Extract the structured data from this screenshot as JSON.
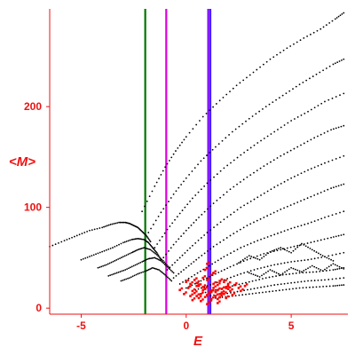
{
  "chart_data": {
    "type": "scatter",
    "xlabel": "E",
    "ylabel": "<M>",
    "xlim": [
      -6.5,
      7.7
    ],
    "ylim": [
      -6,
      297
    ],
    "x_ticks": [
      -5,
      0,
      5
    ],
    "y_ticks": [
      0,
      100,
      200
    ],
    "grid": false,
    "colors": {
      "axis": "#ee1111",
      "band_points": "#000000",
      "cluster_points": "#ff0000",
      "line_green": "#007700",
      "line_magenta": "#dd00dd",
      "line_purple": "#7a00ff",
      "line_blue": "#4a1fff"
    },
    "vertical_lines": [
      {
        "x": -1.95,
        "color": "#007700"
      },
      {
        "x": -0.95,
        "color": "#dd00dd"
      },
      {
        "x": 1.05,
        "color": "#7a00ff"
      },
      {
        "x": 1.15,
        "color": "#4a1fff"
      }
    ],
    "bands": [
      {
        "x": [
          -6.5,
          -5.8,
          -5.2,
          -4.6,
          -4.0,
          -3.6,
          -3.2,
          -2.9,
          -2.7,
          -2.5,
          -2.3,
          -2.1,
          -1.9,
          -1.7
        ],
        "y": [
          61,
          67,
          72,
          77,
          80,
          83,
          85,
          85,
          84,
          82,
          80,
          76,
          72,
          66
        ]
      },
      {
        "x": [
          -5.0,
          -4.5,
          -4.0,
          -3.5,
          -3.0,
          -2.6,
          -2.3,
          -2.0,
          -1.8,
          -1.6,
          -1.4,
          -1.2
        ],
        "y": [
          48,
          52,
          56,
          60,
          65,
          68,
          69,
          68,
          65,
          60,
          55,
          48
        ]
      },
      {
        "x": [
          -4.2,
          -3.8,
          -3.4,
          -3.0,
          -2.6,
          -2.3,
          -2.0,
          -1.7,
          -1.4,
          -1.1,
          -0.8
        ],
        "y": [
          40,
          43,
          47,
          51,
          55,
          58,
          60,
          58,
          53,
          47,
          40
        ]
      },
      {
        "x": [
          -3.7,
          -3.3,
          -2.9,
          -2.5,
          -2.1,
          -1.8,
          -1.5,
          -1.2,
          -0.9,
          -0.6
        ],
        "y": [
          32,
          35,
          38,
          42,
          46,
          49,
          50,
          47,
          41,
          35
        ]
      },
      {
        "x": [
          -3.1,
          -2.7,
          -2.3,
          -1.9,
          -1.6,
          -1.3,
          -1.0,
          -0.7
        ],
        "y": [
          27,
          30,
          34,
          37,
          40,
          38,
          33,
          27
        ]
      },
      {
        "x": [
          -2.1,
          -1.5,
          -1.0,
          -0.5,
          0.0,
          0.8,
          1.6,
          2.4,
          3.2,
          4.0,
          4.8,
          5.6,
          6.4,
          7.1,
          7.5
        ],
        "y": [
          96,
          121,
          140,
          156,
          170,
          190,
          206,
          221,
          234,
          247,
          258,
          268,
          277,
          287,
          293
        ]
      },
      {
        "x": [
          -1.8,
          -1.2,
          -0.6,
          0.0,
          0.7,
          1.4,
          2.2,
          3.0,
          3.8,
          4.6,
          5.4,
          6.2,
          7.0,
          7.5
        ],
        "y": [
          75,
          95,
          113,
          129,
          146,
          160,
          175,
          188,
          200,
          211,
          222,
          232,
          242,
          247
        ]
      },
      {
        "x": [
          -1.5,
          -0.9,
          -0.3,
          0.3,
          1.0,
          1.8,
          2.6,
          3.4,
          4.2,
          5.0,
          5.8,
          6.6,
          7.5
        ],
        "y": [
          60,
          78,
          94,
          109,
          124,
          139,
          152,
          164,
          175,
          186,
          195,
          205,
          213
        ]
      },
      {
        "x": [
          -1.2,
          -0.6,
          0.0,
          0.6,
          1.3,
          2.1,
          2.9,
          3.7,
          4.5,
          5.3,
          6.1,
          6.9,
          7.5
        ],
        "y": [
          47,
          63,
          77,
          90,
          104,
          118,
          130,
          141,
          151,
          160,
          169,
          177,
          181
        ]
      },
      {
        "x": [
          -0.9,
          -0.3,
          0.3,
          1.0,
          1.8,
          2.6,
          3.4,
          4.2,
          5.0,
          5.8,
          6.6,
          7.5
        ],
        "y": [
          38,
          50,
          62,
          75,
          88,
          100,
          110,
          120,
          129,
          137,
          144,
          151
        ]
      },
      {
        "x": [
          -0.6,
          0.0,
          0.6,
          1.3,
          2.1,
          2.9,
          3.7,
          4.5,
          5.3,
          6.1,
          6.9,
          7.5
        ],
        "y": [
          30,
          40,
          50,
          61,
          72,
          82,
          90,
          98,
          105,
          112,
          119,
          123
        ]
      },
      {
        "x": [
          -0.3,
          0.4,
          1.1,
          1.8,
          2.6,
          3.4,
          4.2,
          5.0,
          5.8,
          6.6,
          7.5
        ],
        "y": [
          24,
          33,
          42,
          51,
          60,
          67,
          73,
          79,
          84,
          90,
          96
        ]
      },
      {
        "x": [
          0.0,
          0.7,
          1.4,
          2.1,
          2.9,
          3.7,
          4.5,
          5.3,
          6.1,
          6.9,
          7.5
        ],
        "y": [
          20,
          27,
          34,
          41,
          48,
          54,
          58,
          62,
          66,
          70,
          73
        ]
      },
      {
        "x": [
          0.3,
          1.0,
          1.8,
          2.6,
          3.4,
          4.2,
          5.0,
          5.8,
          6.6,
          7.5
        ],
        "y": [
          17,
          22,
          28,
          34,
          39,
          43,
          46,
          48,
          51,
          55
        ]
      },
      {
        "x": [
          0.6,
          1.4,
          2.2,
          3.0,
          3.8,
          4.6,
          5.4,
          6.2,
          7.0,
          7.5
        ],
        "y": [
          14,
          18,
          22,
          26,
          30,
          33,
          35,
          36,
          38,
          40
        ]
      },
      {
        "x": [
          1.0,
          1.8,
          2.6,
          3.4,
          4.2,
          5.0,
          5.8,
          6.6,
          7.5
        ],
        "y": [
          12,
          14,
          17,
          20,
          23,
          25,
          27,
          28,
          30
        ]
      },
      {
        "x": [
          1.4,
          2.2,
          3.0,
          3.8,
          4.6,
          5.4,
          6.2,
          7.0,
          7.5
        ],
        "y": [
          10,
          12,
          14,
          16,
          18,
          20,
          21,
          22,
          23
        ]
      },
      {
        "x": [
          3.0,
          3.5,
          4.0,
          4.5,
          5.0,
          5.5,
          6.0,
          6.5,
          7.0,
          7.5
        ],
        "y": [
          35,
          31,
          38,
          33,
          40,
          36,
          42,
          37,
          44,
          39
        ]
      },
      {
        "x": [
          2.5,
          3.0,
          3.5,
          4.0,
          4.5,
          5.0,
          5.5,
          6.0,
          6.5,
          7.0
        ],
        "y": [
          45,
          52,
          48,
          56,
          60,
          55,
          64,
          58,
          52,
          47
        ]
      }
    ],
    "cluster": {
      "x": [
        0.1,
        0.3,
        0.5,
        0.7,
        0.9,
        1.1,
        1.3,
        1.5,
        1.7,
        1.9,
        2.1,
        2.3,
        0.2,
        0.4,
        0.6,
        0.8,
        1.0,
        1.2,
        1.4,
        1.6,
        1.8,
        2.0,
        0.0,
        0.5,
        1.0,
        1.5,
        2.0,
        2.5,
        0.3,
        0.7,
        1.1,
        1.5,
        1.9,
        0.8,
        1.2,
        1.6,
        0.9,
        1.3,
        -0.1,
        2.6,
        1.0,
        0.6,
        1.4,
        1.8,
        0.2,
        2.2,
        1.1,
        0.9,
        1.5,
        1.3,
        -0.3,
        0.4,
        1.7,
        2.8,
        1.0,
        1.2,
        0.8,
        1.6,
        0.5,
        1.9
      ],
      "y": [
        20,
        17,
        22,
        14,
        19,
        16,
        24,
        18,
        15,
        21,
        17,
        23,
        12,
        15,
        10,
        18,
        13,
        9,
        16,
        11,
        14,
        19,
        26,
        25,
        28,
        23,
        24,
        20,
        8,
        7,
        6,
        9,
        10,
        30,
        33,
        27,
        38,
        20,
        14,
        17,
        4,
        22,
        12,
        26,
        24,
        13,
        15,
        11,
        5,
        35,
        18,
        28,
        19,
        22,
        44,
        16,
        21,
        14,
        12,
        20
      ]
    }
  }
}
